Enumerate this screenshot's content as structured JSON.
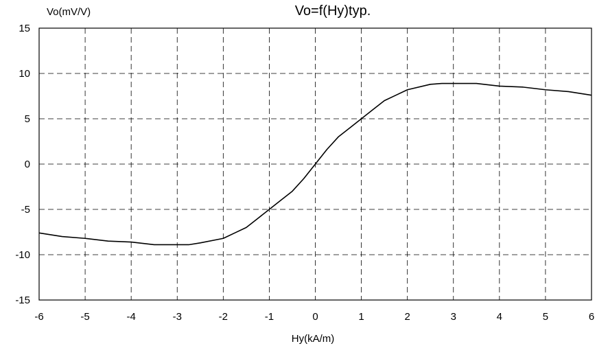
{
  "chart_data": {
    "type": "line",
    "title": "Vo=f(Hy)typ.",
    "xlabel": "Hy(kA/m)",
    "ylabel": "Vo(mV/V)",
    "xlim": [
      -6,
      6
    ],
    "ylim": [
      -15,
      15
    ],
    "x_ticks": [
      "-6",
      "-5",
      "-4",
      "-3",
      "-2",
      "-1",
      "0",
      "1",
      "2",
      "3",
      "4",
      "5",
      "6"
    ],
    "y_ticks": [
      "15",
      "10",
      "5",
      "0",
      "-5",
      "-10",
      "-15"
    ],
    "grid": true,
    "series": [
      {
        "x": [
          -6,
          -5.5,
          -5,
          -4.5,
          -4,
          -3.5,
          -3,
          -2.75,
          -2.5,
          -2,
          -1.75,
          -1.5,
          -1.25,
          -1,
          -0.75,
          -0.5,
          -0.25,
          0,
          0.25,
          0.5,
          0.75,
          1,
          1.25,
          1.5,
          1.75,
          2,
          2.5,
          2.75,
          3,
          3.5,
          4,
          4.5,
          5,
          5.5,
          6
        ],
        "y": [
          -7.6,
          -8.0,
          -8.2,
          -8.5,
          -8.6,
          -8.9,
          -8.9,
          -8.9,
          -8.7,
          -8.2,
          -7.6,
          -7.0,
          -6.0,
          -5.0,
          -4.0,
          -3.0,
          -1.6,
          0,
          1.6,
          3.0,
          4.0,
          5.0,
          6.0,
          7.0,
          7.6,
          8.2,
          8.8,
          8.9,
          8.9,
          8.9,
          8.6,
          8.5,
          8.2,
          8.0,
          7.6
        ]
      }
    ]
  }
}
